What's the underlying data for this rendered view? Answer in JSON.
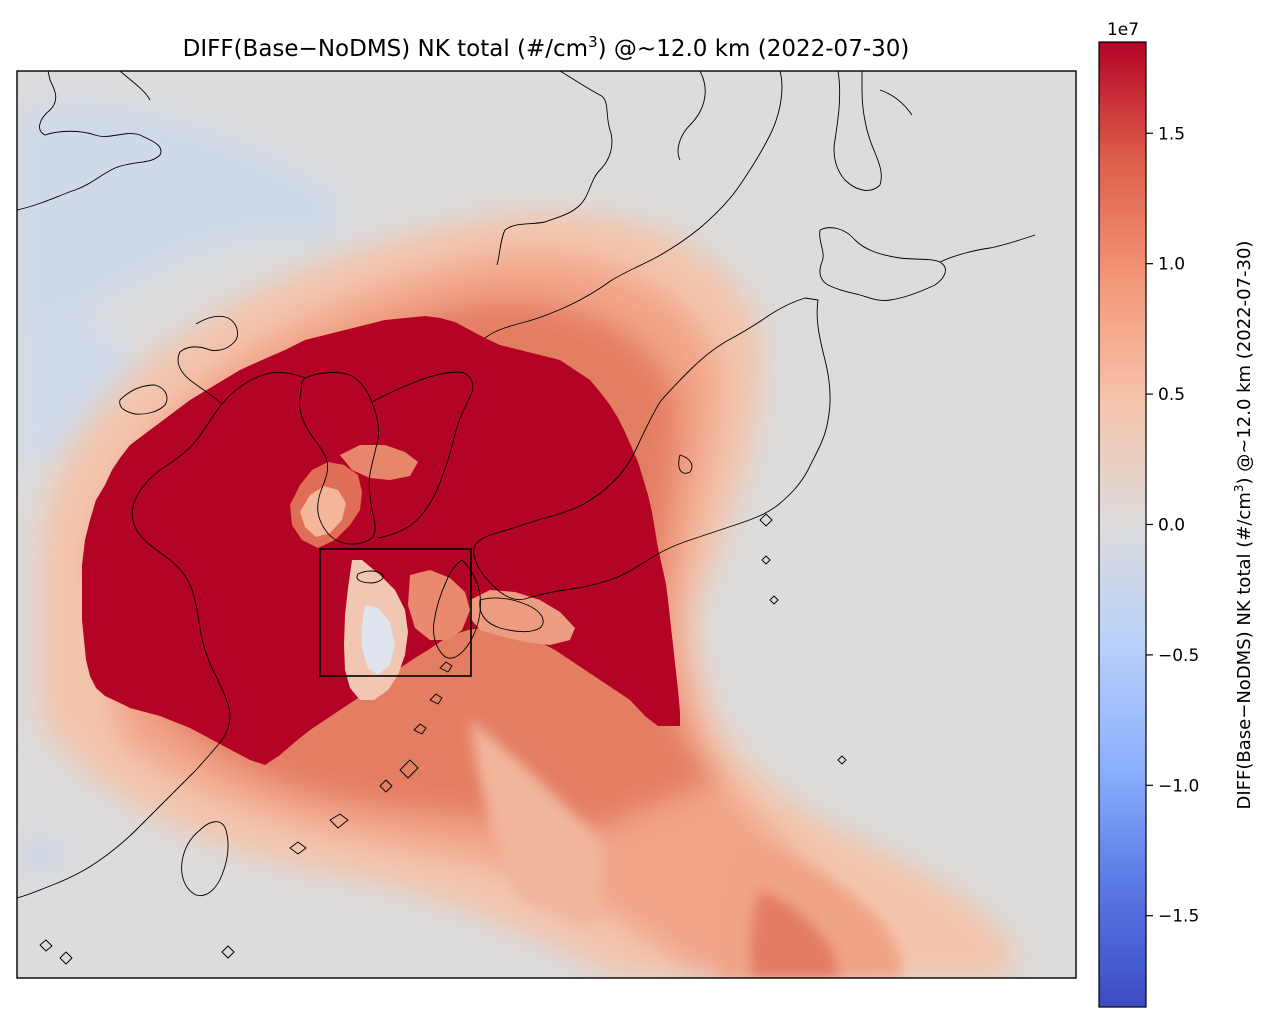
{
  "figure": {
    "title_main": "DIFF(Base−NoDMS) NK total (#/cm",
    "title_sup": "3",
    "title_rest": ") @~12.0 km (2022-07-30)"
  },
  "colorbar": {
    "label_main": "DIFF(Base−NoDMS) NK total (#/cm",
    "label_sup": "3",
    "label_rest": ") @~12.0 km (2022-07-30)",
    "scale_label": "1e7",
    "colormap": "coolwarm",
    "range": [
      -1.85,
      1.85
    ],
    "ticks": [
      {
        "value": -1.5,
        "label": "−1.5"
      },
      {
        "value": -1.0,
        "label": "−1.0"
      },
      {
        "value": -0.5,
        "label": "−0.5"
      },
      {
        "value": 0.0,
        "label": "0.0"
      },
      {
        "value": 0.5,
        "label": "0.5"
      },
      {
        "value": 1.0,
        "label": "1.0"
      },
      {
        "value": 1.5,
        "label": "1.5"
      }
    ],
    "colors": [
      "#3b4cc0",
      "#6788ee",
      "#9abbff",
      "#c9d7f0",
      "#dddddd",
      "#f7c1a8",
      "#f49a7b",
      "#d65244",
      "#b40426"
    ]
  },
  "map": {
    "background_color": "#dcdcdc",
    "saturated_color": "#b40426",
    "analysis_box": "rectangle over Jeju Island and the East China Sea"
  }
}
